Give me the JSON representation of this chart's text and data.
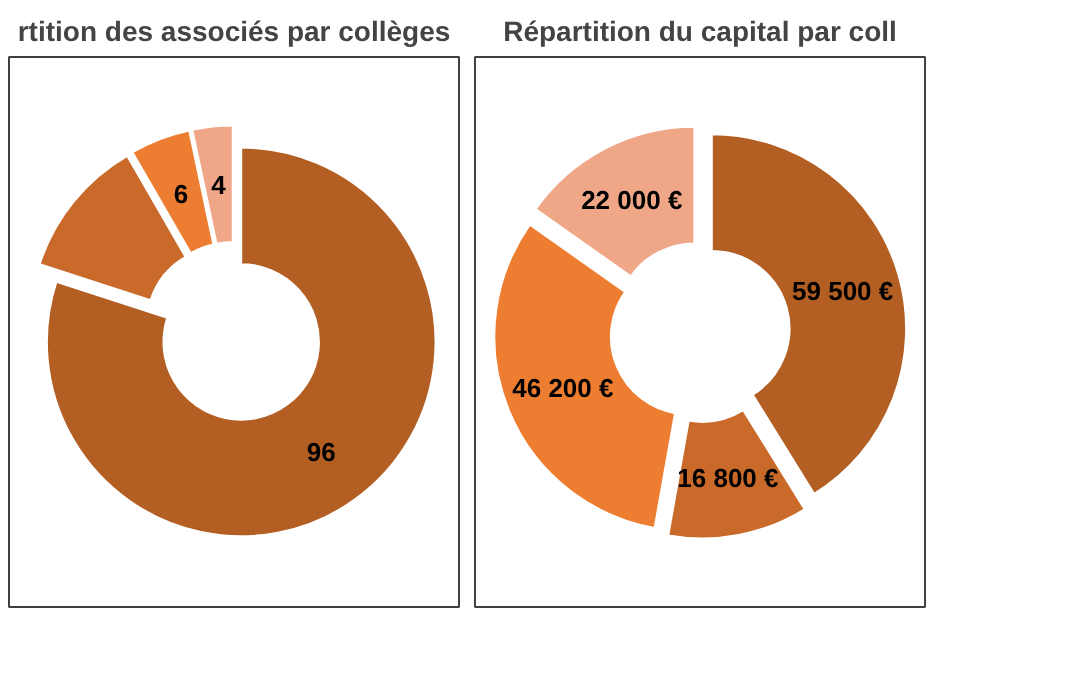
{
  "chart_data": [
    {
      "type": "donut",
      "title": "rtition des associés par collèges",
      "categories": [
        null,
        null,
        null,
        null
      ],
      "values": [
        96,
        14,
        6,
        4
      ],
      "colors": [
        "#b35e22",
        "#c96a2b",
        "#ed7d31",
        "#f0a788"
      ],
      "value_labels": [
        "96",
        null,
        "6",
        "4"
      ]
    },
    {
      "type": "donut",
      "title": "Répartition du capital par coll",
      "categories": [
        null,
        null,
        null,
        null
      ],
      "values": [
        59500,
        16800,
        46200,
        22000
      ],
      "colors": [
        "#b35e22",
        "#c96a2b",
        "#ed7d31",
        "#f0a788"
      ],
      "value_labels": [
        "59 500 €",
        "16 800 €",
        "46 200 €",
        "22 000 €"
      ]
    }
  ]
}
